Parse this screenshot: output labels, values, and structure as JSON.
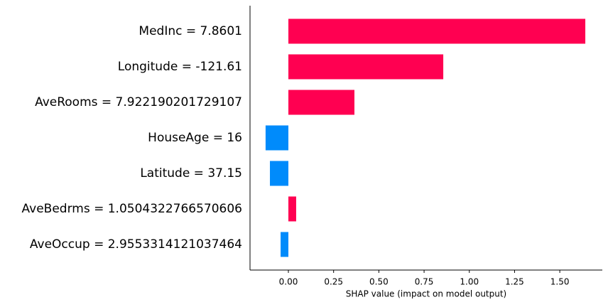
{
  "chart_data": {
    "type": "hbar",
    "xlabel": "SHAP value (impact on model output)",
    "categories": [
      "MedInc = 7.8601",
      "Longitude = -121.61",
      "AveRooms = 7.922190201729107",
      "HouseAge = 16",
      "Latitude = 37.15",
      "AveBedrms = 1.0504322766570606",
      "AveOccup = 2.9553314121037464"
    ],
    "values": [
      1.641,
      0.856,
      0.365,
      -0.126,
      -0.102,
      0.043,
      -0.043
    ],
    "positive_color": "#ff0051",
    "negative_color": "#008bfb",
    "xlim": [
      -0.212,
      1.735
    ],
    "xticks": [
      {
        "value": 0,
        "label": "0.00"
      },
      {
        "value": 0.25,
        "label": "0.25"
      },
      {
        "value": 0.5,
        "label": "0.50"
      },
      {
        "value": 0.75,
        "label": "0.75"
      },
      {
        "value": 1,
        "label": "1.00"
      },
      {
        "value": 1.25,
        "label": "1.25"
      },
      {
        "value": 1.5,
        "label": "1.50"
      }
    ]
  }
}
